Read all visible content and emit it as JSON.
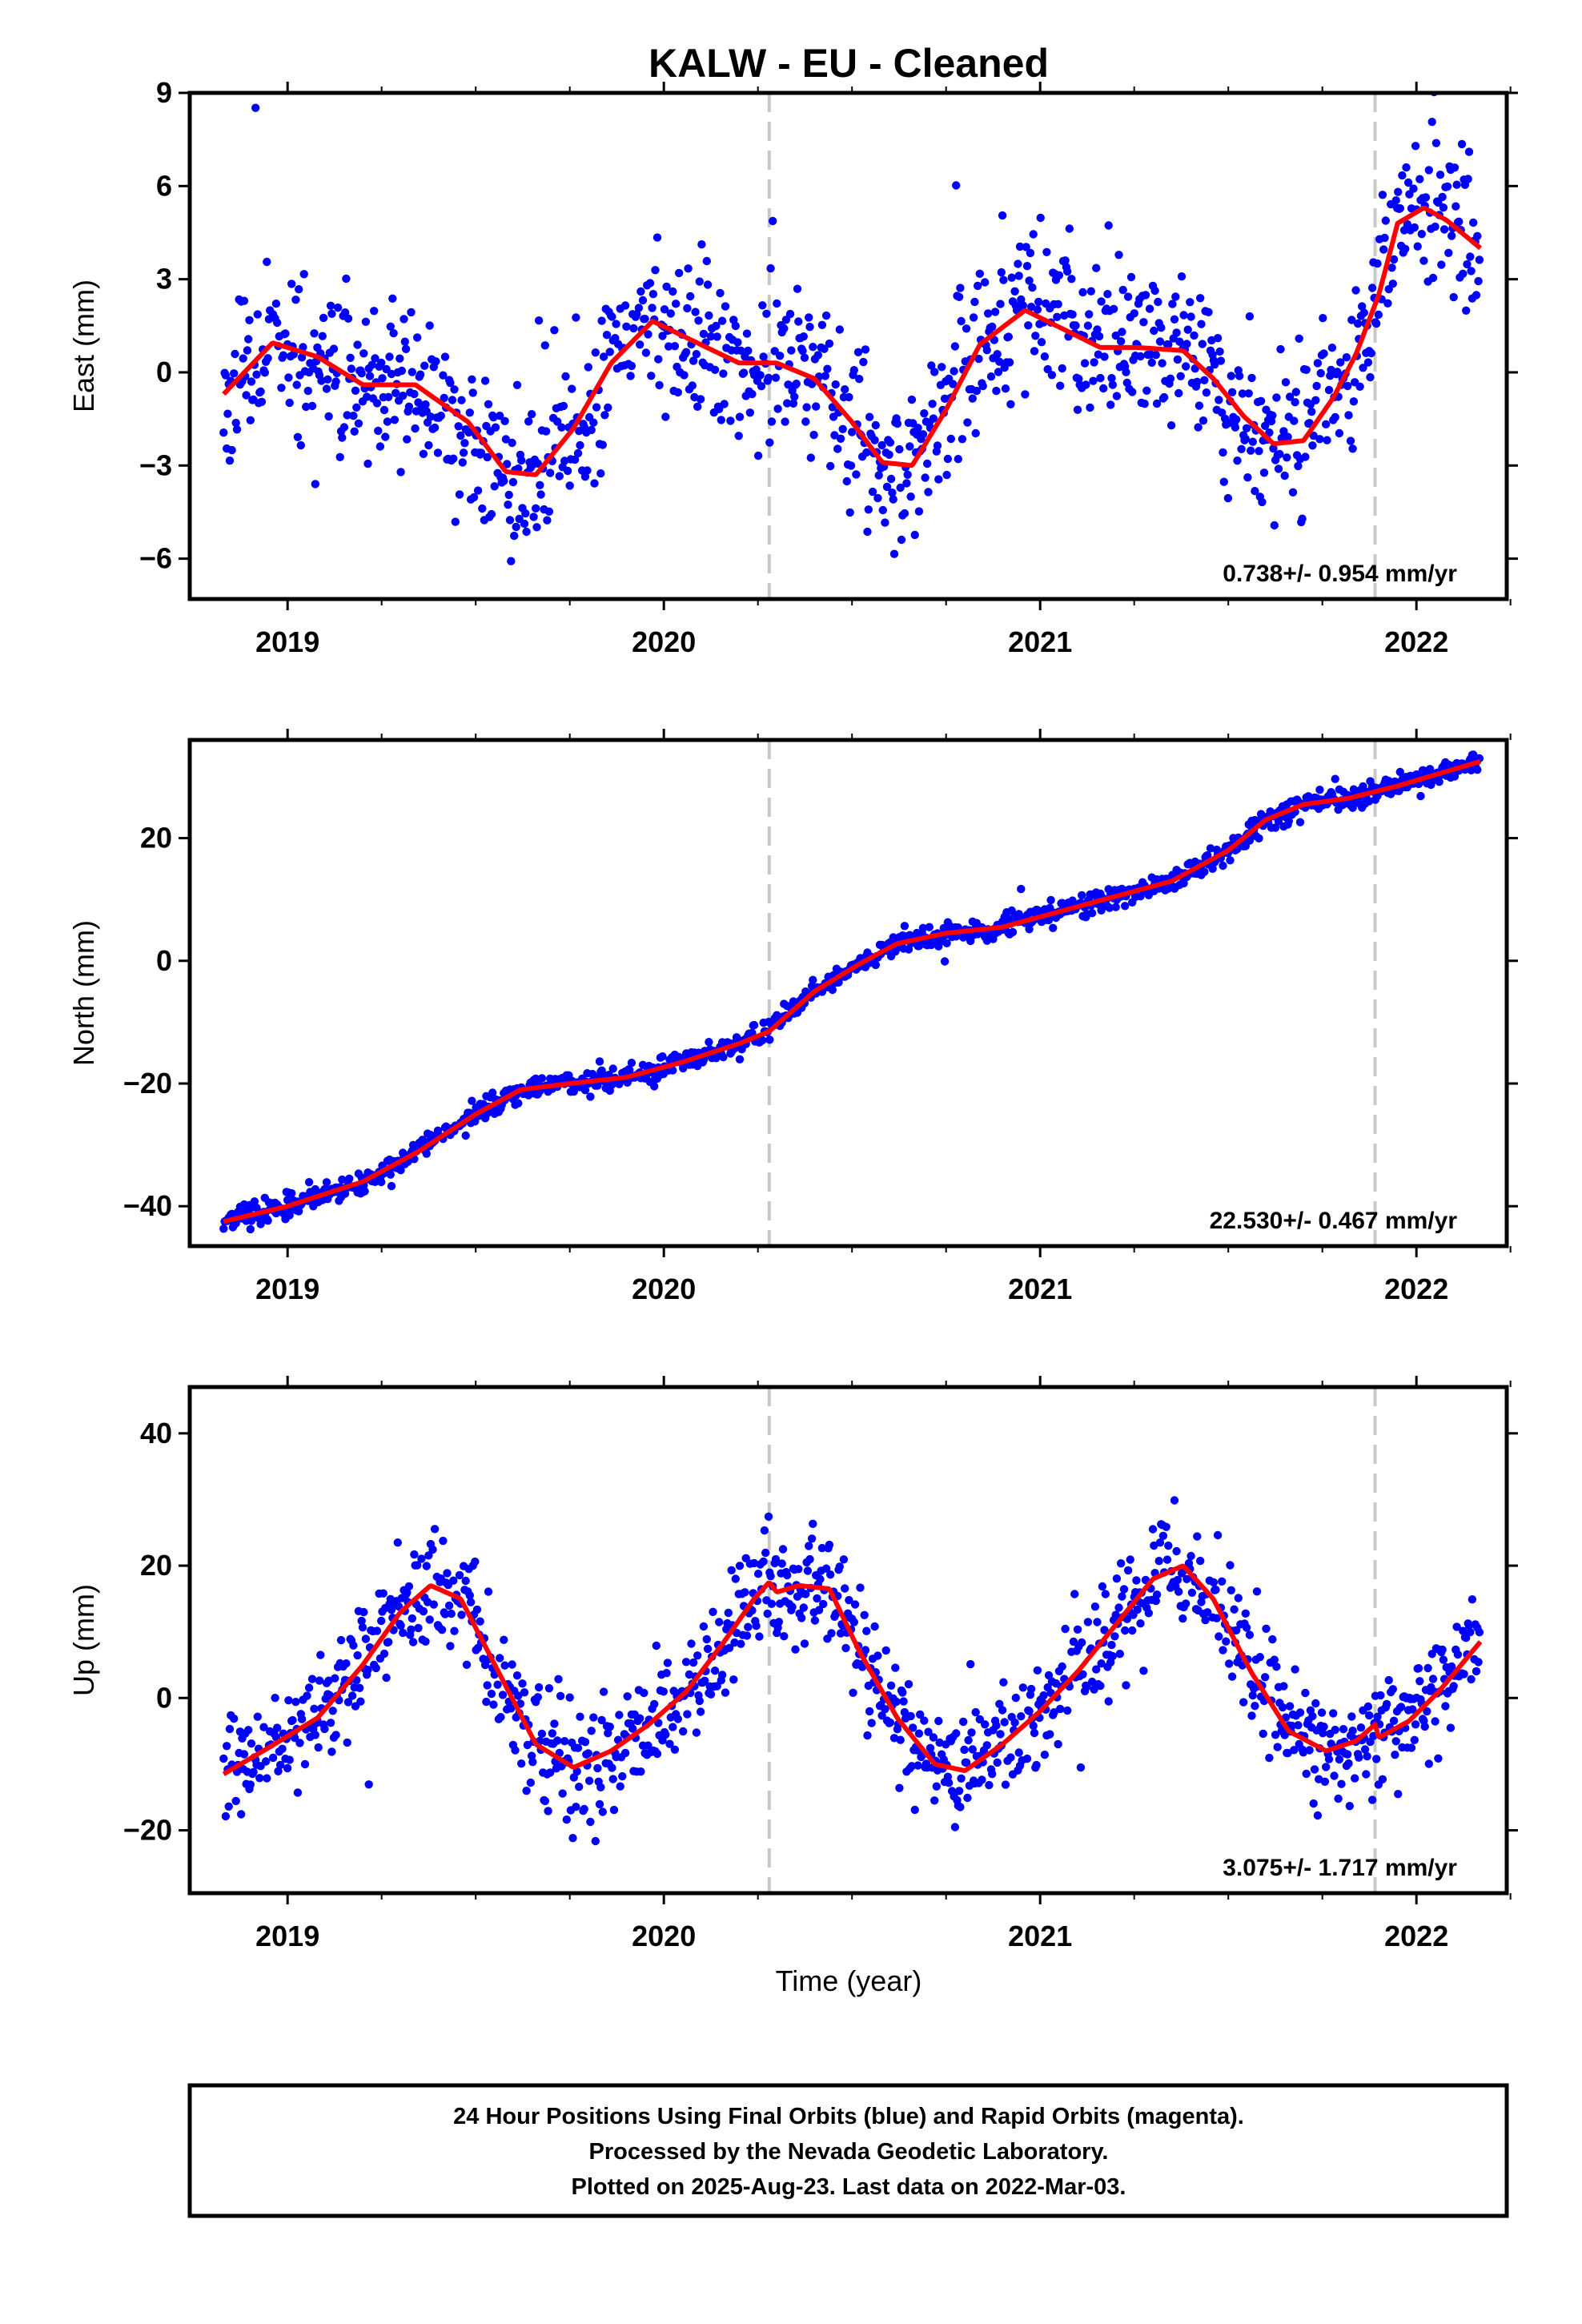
{
  "title": "KALW  - EU - Cleaned",
  "xlabel": "Time (year)",
  "note_lines": [
    "24 Hour Positions Using Final Orbits (blue) and Rapid Orbits (magenta).",
    "Processed by the Nevada Geodetic Laboratory.",
    "Plotted on 2025-Aug-23. Last data on 2022-Mar-03."
  ],
  "colors": {
    "points": "#0000ff",
    "fit": "#ff0000",
    "event_lines": "#c8c8c8",
    "frame": "#000000"
  },
  "chart_data": [
    {
      "type": "scatter",
      "component": "east",
      "ylabel": "East (mm)",
      "rate_text": "0.738+/- 0.954 mm/yr",
      "xlim": [
        2018.74,
        2022.24
      ],
      "ylim": [
        -7.3,
        9.0
      ],
      "yticks": [
        -6,
        -3,
        0,
        3,
        6,
        9
      ],
      "xticks": [
        2019,
        2020,
        2021,
        2022
      ],
      "minor_xticks": [
        2019.25,
        2019.5,
        2019.75,
        2020.25,
        2020.5,
        2020.75,
        2021.25,
        2021.5,
        2021.75,
        2022.25
      ],
      "event_lines_x": [
        2020.28,
        2021.89
      ],
      "date_range": [
        2018.83,
        2022.17
      ],
      "fit": {
        "x": [
          2018.83,
          2018.96,
          2019.08,
          2019.2,
          2019.34,
          2019.48,
          2019.58,
          2019.66,
          2019.76,
          2019.86,
          2019.97,
          2020.08,
          2020.2,
          2020.3,
          2020.4,
          2020.5,
          2020.58,
          2020.66,
          2020.75,
          2020.84,
          2020.96,
          2021.06,
          2021.16,
          2021.26,
          2021.38,
          2021.46,
          2021.54,
          2021.62,
          2021.7,
          2021.78,
          2021.84,
          2021.9,
          2021.95,
          2022.02,
          2022.08,
          2022.17
        ],
        "y": [
          -0.7,
          0.95,
          0.5,
          -0.4,
          -0.4,
          -1.6,
          -3.2,
          -3.3,
          -1.8,
          0.3,
          1.65,
          1.0,
          0.3,
          0.3,
          -0.2,
          -1.6,
          -2.9,
          -3.0,
          -1.2,
          0.9,
          2.0,
          1.4,
          0.8,
          0.8,
          0.7,
          -0.2,
          -1.4,
          -2.3,
          -2.2,
          -0.8,
          0.6,
          2.5,
          4.8,
          5.3,
          4.9,
          4.0
        ]
      },
      "noise": 1.3,
      "seed": 11
    },
    {
      "type": "scatter",
      "component": "north",
      "ylabel": "North (mm)",
      "rate_text": "22.530+/- 0.467 mm/yr",
      "xlim": [
        2018.74,
        2022.24
      ],
      "ylim": [
        -46.5,
        36.0
      ],
      "yticks": [
        -40,
        -20,
        0,
        20
      ],
      "xticks": [
        2019,
        2020,
        2021,
        2022
      ],
      "minor_xticks": [
        2019.25,
        2019.5,
        2019.75,
        2020.25,
        2020.5,
        2020.75,
        2021.25,
        2021.5,
        2021.75,
        2022.25
      ],
      "event_lines_x": [
        2020.28,
        2021.89
      ],
      "date_range": [
        2018.83,
        2022.17
      ],
      "fit": {
        "x": [
          2018.83,
          2019.0,
          2019.2,
          2019.35,
          2019.5,
          2019.62,
          2019.75,
          2019.9,
          2020.05,
          2020.2,
          2020.28,
          2020.4,
          2020.52,
          2020.62,
          2020.75,
          2020.9,
          2021.05,
          2021.2,
          2021.35,
          2021.5,
          2021.6,
          2021.7,
          2021.82,
          2021.95,
          2022.17
        ],
        "y": [
          -42.5,
          -40.0,
          -36.0,
          -31.0,
          -25.0,
          -21.0,
          -20.0,
          -19.0,
          -16.5,
          -13.5,
          -11.5,
          -5.0,
          -0.5,
          2.8,
          4.5,
          5.5,
          8.0,
          10.5,
          13.0,
          18.0,
          23.0,
          25.5,
          26.5,
          28.5,
          32.5
        ]
      },
      "noise": 0.9,
      "seed": 23
    },
    {
      "type": "scatter",
      "component": "up",
      "ylabel": "Up (mm)",
      "rate_text": "3.075+/- 1.717 mm/yr",
      "xlim": [
        2018.74,
        2022.24
      ],
      "ylim": [
        -29.5,
        47.0
      ],
      "yticks": [
        -20,
        0,
        20,
        40
      ],
      "xticks": [
        2019,
        2020,
        2021,
        2022
      ],
      "minor_xticks": [
        2019.25,
        2019.5,
        2019.75,
        2020.25,
        2020.5,
        2020.75,
        2021.25,
        2021.5,
        2021.75,
        2022.25
      ],
      "event_lines_x": [
        2020.28,
        2021.89
      ],
      "date_range": [
        2018.83,
        2022.17
      ],
      "fit": {
        "x": [
          2018.83,
          2018.95,
          2019.08,
          2019.2,
          2019.3,
          2019.38,
          2019.46,
          2019.56,
          2019.66,
          2019.76,
          2019.86,
          2019.96,
          2020.06,
          2020.16,
          2020.24,
          2020.28,
          2020.3,
          2020.36,
          2020.44,
          2020.52,
          2020.62,
          2020.72,
          2020.8,
          2020.9,
          2021.0,
          2021.1,
          2021.2,
          2021.3,
          2021.38,
          2021.46,
          2021.56,
          2021.66,
          2021.76,
          2021.84,
          2021.89,
          2021.9,
          2021.98,
          2022.06,
          2022.17
        ],
        "y": [
          -11.5,
          -7.5,
          -3.0,
          5.0,
          13.0,
          17.0,
          15.0,
          4.0,
          -7.0,
          -10.5,
          -8.0,
          -4.0,
          1.0,
          8.5,
          15.0,
          17.5,
          16.0,
          17.0,
          16.5,
          7.0,
          -3.0,
          -10.0,
          -11.0,
          -7.0,
          -2.0,
          4.0,
          11.0,
          18.0,
          20.0,
          15.0,
          4.0,
          -5.0,
          -8.0,
          -6.5,
          -4.0,
          -6.0,
          -3.5,
          1.0,
          8.5
        ]
      },
      "noise": 4.3,
      "seed": 37
    }
  ]
}
